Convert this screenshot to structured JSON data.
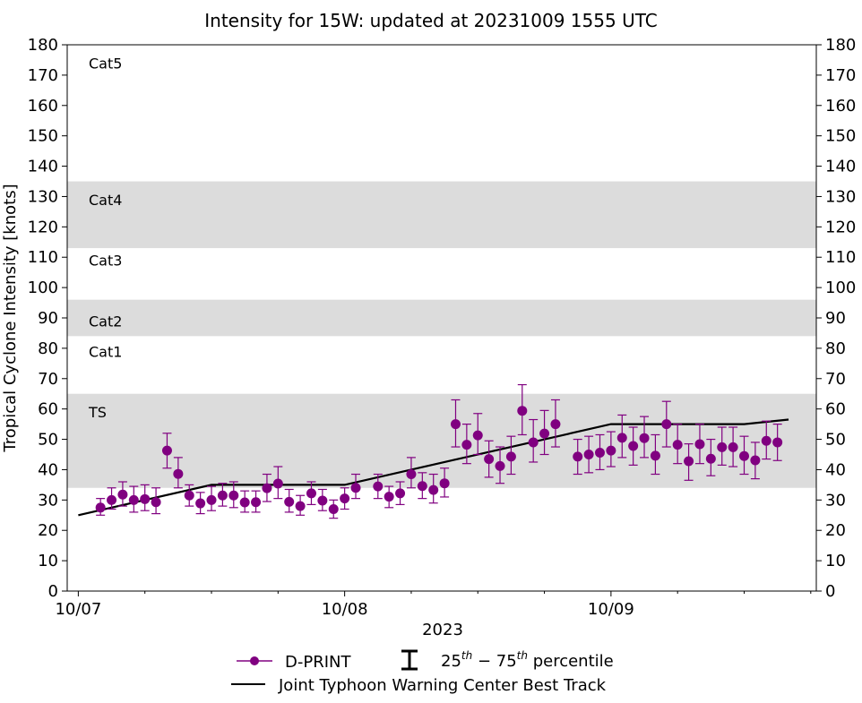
{
  "chart_data": {
    "type": "scatter",
    "title": "Intensity for 15W: updated at 20231009 1555 UTC",
    "xlabel": "2023",
    "ylabel": "Tropical Cyclone Intensity [knots]",
    "x_unit": "hours since 2023-10-07 00:00 UTC",
    "xlim": [
      -4,
      266
    ],
    "ylim": [
      0,
      180
    ],
    "y_ticks": [
      0,
      10,
      20,
      30,
      40,
      50,
      60,
      70,
      80,
      90,
      100,
      110,
      120,
      130,
      140,
      150,
      160,
      170,
      180
    ],
    "x_ticks": [
      {
        "x": 0,
        "label": "10/07"
      },
      {
        "x": 96,
        "label": "10/08"
      },
      {
        "x": 192,
        "label": "10/09"
      }
    ],
    "x_minor_ticks": [
      24,
      48,
      72,
      120,
      144,
      168,
      216,
      240,
      264
    ],
    "bands": [
      {
        "label": "TS",
        "y0": 34,
        "y1": 65,
        "shaded": true
      },
      {
        "label": "Cat1",
        "y0": 65,
        "y1": 84,
        "shaded": false
      },
      {
        "label": "Cat2",
        "y0": 84,
        "y1": 96,
        "shaded": true
      },
      {
        "label": "Cat3",
        "y0": 96,
        "y1": 113,
        "shaded": false
      },
      {
        "label": "Cat4",
        "y0": 113,
        "y1": 135,
        "shaded": true
      },
      {
        "label": "Cat5",
        "y0": 135,
        "y1": 180,
        "shaded": false
      }
    ],
    "band_label_y": {
      "TS": 59,
      "Cat1": 79,
      "Cat2": 89,
      "Cat3": 109,
      "Cat4": 129,
      "Cat5": 174
    },
    "colors": {
      "dprint": "#800080",
      "best_track": "#000000",
      "band": "#dcdcdc"
    },
    "series": [
      {
        "name": "D-PRINT",
        "points": [
          {
            "x": 8,
            "y": 27.5,
            "lo": 25,
            "hi": 30.5
          },
          {
            "x": 12,
            "y": 30,
            "lo": 27,
            "hi": 34
          },
          {
            "x": 16,
            "y": 31.8,
            "lo": 28,
            "hi": 36
          },
          {
            "x": 20,
            "y": 30,
            "lo": 26,
            "hi": 34.5
          },
          {
            "x": 24,
            "y": 30.3,
            "lo": 26.5,
            "hi": 35
          },
          {
            "x": 28,
            "y": 29.3,
            "lo": 25.5,
            "hi": 34
          },
          {
            "x": 32,
            "y": 46.3,
            "lo": 40.5,
            "hi": 52
          },
          {
            "x": 36,
            "y": 38.6,
            "lo": 34,
            "hi": 44
          },
          {
            "x": 40,
            "y": 31.5,
            "lo": 28,
            "hi": 35
          },
          {
            "x": 44,
            "y": 28.9,
            "lo": 25.5,
            "hi": 32.5
          },
          {
            "x": 48,
            "y": 30,
            "lo": 26.5,
            "hi": 34.5
          },
          {
            "x": 52,
            "y": 31.5,
            "lo": 28,
            "hi": 35.5
          },
          {
            "x": 56,
            "y": 31.5,
            "lo": 27.5,
            "hi": 36
          },
          {
            "x": 60,
            "y": 29.2,
            "lo": 26,
            "hi": 33
          },
          {
            "x": 64,
            "y": 29.3,
            "lo": 26,
            "hi": 33
          },
          {
            "x": 68,
            "y": 33.9,
            "lo": 29.5,
            "hi": 38.5
          },
          {
            "x": 72,
            "y": 35.4,
            "lo": 30.5,
            "hi": 41
          },
          {
            "x": 76,
            "y": 29.4,
            "lo": 26,
            "hi": 33.5
          },
          {
            "x": 80,
            "y": 28,
            "lo": 25,
            "hi": 31.5
          },
          {
            "x": 84,
            "y": 32.2,
            "lo": 28.5,
            "hi": 36
          },
          {
            "x": 88,
            "y": 29.8,
            "lo": 26.5,
            "hi": 33.5
          },
          {
            "x": 92,
            "y": 27,
            "lo": 24,
            "hi": 30
          },
          {
            "x": 96,
            "y": 30.5,
            "lo": 27,
            "hi": 34
          },
          {
            "x": 100,
            "y": 34,
            "lo": 30.5,
            "hi": 38.5
          },
          {
            "x": 108,
            "y": 34.5,
            "lo": 30.5,
            "hi": 38.5
          },
          {
            "x": 112,
            "y": 31.1,
            "lo": 27.5,
            "hi": 34.5
          },
          {
            "x": 116,
            "y": 32.2,
            "lo": 28.5,
            "hi": 36
          },
          {
            "x": 120,
            "y": 38.5,
            "lo": 34,
            "hi": 44
          },
          {
            "x": 124,
            "y": 34.6,
            "lo": 30.5,
            "hi": 39
          },
          {
            "x": 128,
            "y": 33.3,
            "lo": 29,
            "hi": 38.5
          },
          {
            "x": 132,
            "y": 35.5,
            "lo": 31,
            "hi": 40.5
          },
          {
            "x": 136,
            "y": 55,
            "lo": 47.5,
            "hi": 63
          },
          {
            "x": 140,
            "y": 48.2,
            "lo": 42,
            "hi": 55
          },
          {
            "x": 144,
            "y": 51.3,
            "lo": 45,
            "hi": 58.5
          },
          {
            "x": 148,
            "y": 43.5,
            "lo": 37.5,
            "hi": 49.5
          },
          {
            "x": 152,
            "y": 41.2,
            "lo": 35.5,
            "hi": 47.5
          },
          {
            "x": 156,
            "y": 44.3,
            "lo": 38.5,
            "hi": 51
          },
          {
            "x": 160,
            "y": 59.4,
            "lo": 51.5,
            "hi": 68
          },
          {
            "x": 164,
            "y": 49,
            "lo": 42.5,
            "hi": 56.5
          },
          {
            "x": 168,
            "y": 51.9,
            "lo": 45,
            "hi": 59.5
          },
          {
            "x": 172,
            "y": 55,
            "lo": 47.5,
            "hi": 63
          },
          {
            "x": 180,
            "y": 44.3,
            "lo": 38.5,
            "hi": 50
          },
          {
            "x": 184,
            "y": 45,
            "lo": 39,
            "hi": 51
          },
          {
            "x": 188,
            "y": 45.6,
            "lo": 40,
            "hi": 51.5
          },
          {
            "x": 192,
            "y": 46.3,
            "lo": 41,
            "hi": 52.5
          },
          {
            "x": 196,
            "y": 50.5,
            "lo": 44,
            "hi": 58
          },
          {
            "x": 200,
            "y": 47.8,
            "lo": 41.5,
            "hi": 54
          },
          {
            "x": 204,
            "y": 50.4,
            "lo": 44,
            "hi": 57.5
          },
          {
            "x": 208,
            "y": 44.6,
            "lo": 38.5,
            "hi": 51.5
          },
          {
            "x": 212,
            "y": 55,
            "lo": 47.5,
            "hi": 62.5
          },
          {
            "x": 216,
            "y": 48.2,
            "lo": 42,
            "hi": 55
          },
          {
            "x": 220,
            "y": 42.8,
            "lo": 36.5,
            "hi": 48.5
          },
          {
            "x": 224,
            "y": 48.4,
            "lo": 42,
            "hi": 55
          },
          {
            "x": 228,
            "y": 43.6,
            "lo": 38,
            "hi": 50
          },
          {
            "x": 232,
            "y": 47.4,
            "lo": 41.5,
            "hi": 54
          },
          {
            "x": 236,
            "y": 47.4,
            "lo": 41,
            "hi": 54
          },
          {
            "x": 240,
            "y": 44.5,
            "lo": 38.5,
            "hi": 51
          },
          {
            "x": 244,
            "y": 43.1,
            "lo": 37,
            "hi": 49
          },
          {
            "x": 248,
            "y": 49.5,
            "lo": 43.5,
            "hi": 56
          },
          {
            "x": 252,
            "y": 49,
            "lo": 43,
            "hi": 55
          }
        ]
      },
      {
        "name": "Joint Typhoon Warning Center Best Track",
        "points": [
          {
            "x": 0,
            "y": 25
          },
          {
            "x": 48,
            "y": 35
          },
          {
            "x": 96,
            "y": 35
          },
          {
            "x": 192,
            "y": 55
          },
          {
            "x": 240,
            "y": 55
          },
          {
            "x": 256,
            "y": 56.5
          }
        ]
      }
    ],
    "legend": {
      "placement": "bottom-center",
      "dprint_label": "D-PRINT",
      "percentile_label_prefix": "25",
      "percentile_sup1": "th",
      "percentile_mid": " − 75",
      "percentile_sup2": "th",
      "percentile_suffix": " percentile",
      "best_track_label": "Joint Typhoon Warning Center Best Track"
    }
  }
}
